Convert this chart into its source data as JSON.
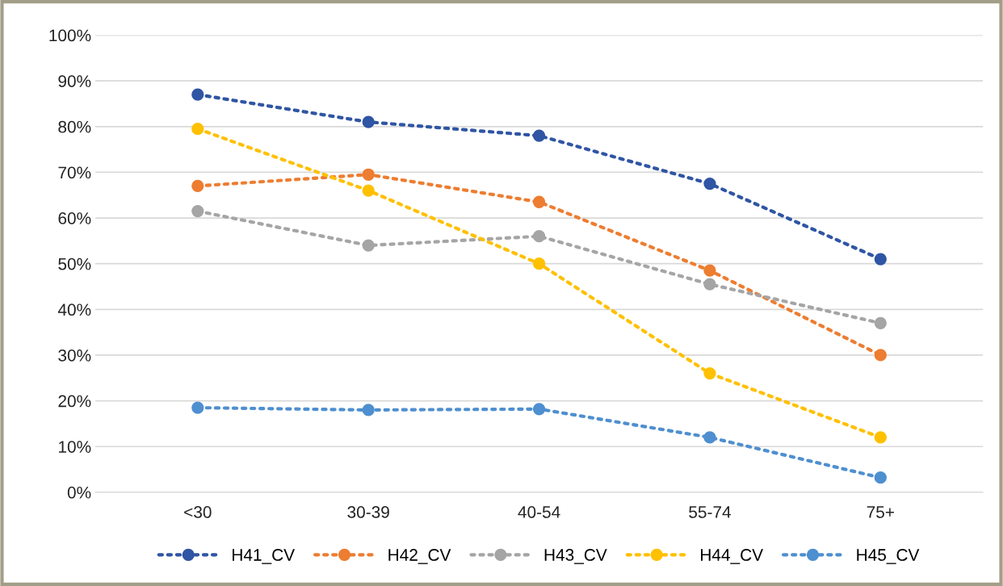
{
  "chart_data": {
    "type": "line",
    "categories": [
      "<30",
      "30-39",
      "40-54",
      "55-74",
      "75+"
    ],
    "series": [
      {
        "name": "H41_CV",
        "color": "#2f55a4",
        "values": [
          87,
          81,
          78,
          67.5,
          51
        ]
      },
      {
        "name": "H42_CV",
        "color": "#ed7d31",
        "values": [
          67,
          69.5,
          63.5,
          48.5,
          30
        ]
      },
      {
        "name": "H43_CV",
        "color": "#a5a5a5",
        "values": [
          61.5,
          54,
          56,
          45.5,
          37
        ]
      },
      {
        "name": "H44_CV",
        "color": "#ffc000",
        "values": [
          79.5,
          66,
          50,
          26,
          12
        ]
      },
      {
        "name": "H45_CV",
        "color": "#4e8fd0",
        "values": [
          18.5,
          18,
          18.2,
          12,
          3.2
        ]
      }
    ],
    "ylim": [
      0,
      100
    ],
    "yticks": [
      {
        "value": 0,
        "label": "0%"
      },
      {
        "value": 10,
        "label": "10%"
      },
      {
        "value": 20,
        "label": "20%"
      },
      {
        "value": 30,
        "label": "30%"
      },
      {
        "value": 40,
        "label": "40%"
      },
      {
        "value": 50,
        "label": "50%"
      },
      {
        "value": 60,
        "label": "60%"
      },
      {
        "value": 70,
        "label": "70%"
      },
      {
        "value": 80,
        "label": "80%"
      },
      {
        "value": 90,
        "label": "90%"
      },
      {
        "value": 100,
        "label": "100%"
      }
    ],
    "grid": "y",
    "legend": "bottom",
    "marker": "circle",
    "line_style": "dotted"
  }
}
